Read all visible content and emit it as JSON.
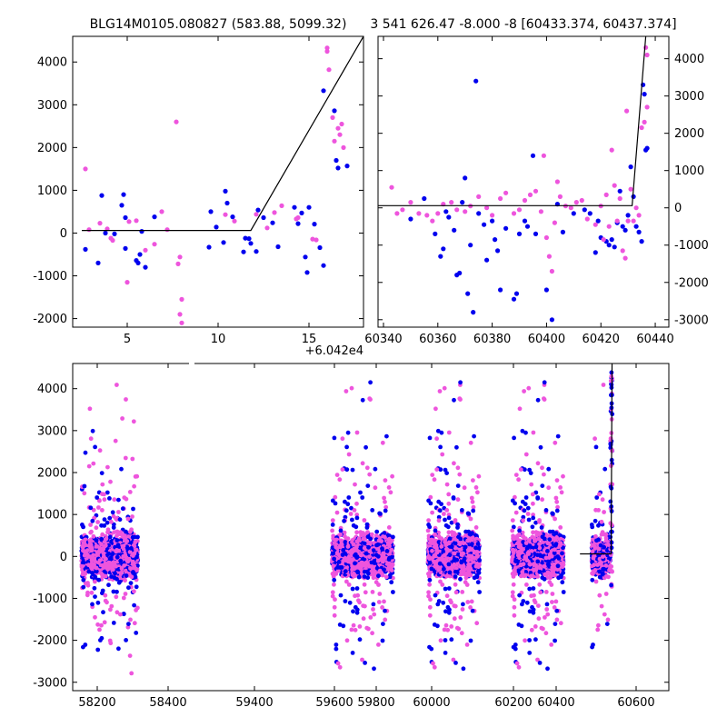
{
  "colors": {
    "blue": "#0000ee",
    "magenta": "#ee55dd",
    "model": "#000000"
  },
  "chart_data": [
    {
      "id": "top-left",
      "type": "scatter",
      "title": "BLG14M0105.080827 (583.88, 5099.32)",
      "xlim": [
        2,
        18
      ],
      "ylim": [
        -2200,
        4600
      ],
      "xticks": [
        5,
        10,
        15
      ],
      "yticks": [
        -2000,
        -1000,
        0,
        1000,
        2000,
        3000,
        4000
      ],
      "xoffset_label": "+6.042e4",
      "ytick_side": "left",
      "model_line": [
        [
          2.5,
          60
        ],
        [
          11.8,
          60
        ],
        [
          18,
          4600
        ]
      ],
      "series": [
        {
          "color": "blue",
          "points": [
            [
              2.7,
              -380
            ],
            [
              3.4,
              -700
            ],
            [
              3.6,
              880
            ],
            [
              3.8,
              0
            ],
            [
              4.3,
              -20
            ],
            [
              4.7,
              650
            ],
            [
              4.8,
              900
            ],
            [
              4.9,
              -360
            ],
            [
              4.9,
              360
            ],
            [
              5.5,
              -640
            ],
            [
              5.6,
              -700
            ],
            [
              5.7,
              -500
            ],
            [
              5.8,
              40
            ],
            [
              6.0,
              -800
            ],
            [
              6.5,
              380
            ],
            [
              9.5,
              -330
            ],
            [
              9.6,
              500
            ],
            [
              9.9,
              140
            ],
            [
              10.3,
              -220
            ],
            [
              10.4,
              980
            ],
            [
              10.5,
              700
            ],
            [
              10.8,
              380
            ],
            [
              11.4,
              -440
            ],
            [
              11.5,
              -120
            ],
            [
              11.7,
              -130
            ],
            [
              11.8,
              -240
            ],
            [
              12.1,
              -430
            ],
            [
              12.2,
              540
            ],
            [
              12.5,
              360
            ],
            [
              13.0,
              240
            ],
            [
              13.3,
              -320
            ],
            [
              14.2,
              600
            ],
            [
              14.4,
              220
            ],
            [
              14.6,
              470
            ],
            [
              14.8,
              -560
            ],
            [
              14.9,
              -920
            ],
            [
              15.0,
              600
            ],
            [
              15.3,
              210
            ],
            [
              15.6,
              -340
            ],
            [
              15.8,
              -760
            ],
            [
              15.8,
              3330
            ],
            [
              16.4,
              2860
            ],
            [
              16.5,
              1700
            ],
            [
              16.6,
              1520
            ],
            [
              17.1,
              1570
            ]
          ]
        },
        {
          "color": "magenta",
          "points": [
            [
              2.7,
              1500
            ],
            [
              2.9,
              80
            ],
            [
              3.5,
              230
            ],
            [
              3.9,
              100
            ],
            [
              4.1,
              -120
            ],
            [
              4.2,
              -170
            ],
            [
              5.0,
              -1150
            ],
            [
              5.1,
              270
            ],
            [
              5.5,
              290
            ],
            [
              6.0,
              -400
            ],
            [
              6.5,
              -260
            ],
            [
              6.9,
              500
            ],
            [
              7.2,
              80
            ],
            [
              7.7,
              2600
            ],
            [
              7.8,
              -720
            ],
            [
              7.9,
              -560
            ],
            [
              7.9,
              -1900
            ],
            [
              8.0,
              -1550
            ],
            [
              8.0,
              -2100
            ],
            [
              10.4,
              430
            ],
            [
              10.9,
              280
            ],
            [
              12.1,
              440
            ],
            [
              12.7,
              120
            ],
            [
              13.1,
              480
            ],
            [
              13.5,
              640
            ],
            [
              14.3,
              330
            ],
            [
              14.4,
              360
            ],
            [
              15.2,
              -140
            ],
            [
              15.4,
              -160
            ],
            [
              16.0,
              4330
            ],
            [
              16.0,
              4250
            ],
            [
              16.1,
              3820
            ],
            [
              16.3,
              2700
            ],
            [
              16.4,
              2150
            ],
            [
              16.6,
              2450
            ],
            [
              16.8,
              2550
            ],
            [
              16.9,
              2000
            ],
            [
              16.7,
              2300
            ]
          ]
        }
      ]
    },
    {
      "id": "top-right",
      "type": "scatter",
      "title": "3 541 626.47 -8.000 -8 [60433.374, 60437.374]",
      "xlim": [
        60338,
        60445
      ],
      "ylim": [
        -3200,
        4600
      ],
      "xticks": [
        60340,
        60360,
        60380,
        60400,
        60420,
        60440
      ],
      "yticks": [
        -3000,
        -2000,
        -1000,
        0,
        1000,
        2000,
        3000,
        4000
      ],
      "ytick_side": "right",
      "model_line": [
        [
          60338,
          60
        ],
        [
          60431.5,
          60
        ],
        [
          60436.5,
          4600
        ]
      ],
      "series": [
        {
          "color": "blue",
          "points": [
            [
              60350,
              -300
            ],
            [
              60355,
              250
            ],
            [
              60359,
              -700
            ],
            [
              60361,
              -1300
            ],
            [
              60362,
              -1100
            ],
            [
              60363,
              -100
            ],
            [
              60364,
              -250
            ],
            [
              60366,
              -600
            ],
            [
              60367,
              -1800
            ],
            [
              60368,
              -1750
            ],
            [
              60369,
              150
            ],
            [
              60370,
              800
            ],
            [
              60371,
              -2300
            ],
            [
              60372,
              -1000
            ],
            [
              60373,
              -2800
            ],
            [
              60374,
              3400
            ],
            [
              60375,
              -150
            ],
            [
              60377,
              -450
            ],
            [
              60378,
              -1400
            ],
            [
              60380,
              -350
            ],
            [
              60381,
              -850
            ],
            [
              60382,
              -1150
            ],
            [
              60383,
              -2200
            ],
            [
              60385,
              -550
            ],
            [
              60388,
              -2450
            ],
            [
              60389,
              -2300
            ],
            [
              60390,
              -700
            ],
            [
              60392,
              -350
            ],
            [
              60393,
              -500
            ],
            [
              60395,
              1400
            ],
            [
              60396,
              -700
            ],
            [
              60400,
              -2200
            ],
            [
              60402,
              -3000
            ],
            [
              60404,
              100
            ],
            [
              60406,
              -650
            ],
            [
              60410,
              -150
            ],
            [
              60414,
              -50
            ],
            [
              60416,
              -150
            ],
            [
              60418,
              -1200
            ],
            [
              60419,
              -350
            ],
            [
              60420,
              -800
            ],
            [
              60422,
              -900
            ],
            [
              60423,
              -1000
            ],
            [
              60424,
              -850
            ],
            [
              60425,
              -1050
            ],
            [
              60426,
              -400
            ],
            [
              60427,
              450
            ],
            [
              60428,
              -500
            ],
            [
              60429,
              -600
            ],
            [
              60430,
              -200
            ],
            [
              60431,
              1100
            ],
            [
              60432,
              300
            ],
            [
              60433,
              -500
            ],
            [
              60434,
              -650
            ],
            [
              60435,
              -900
            ],
            [
              60435.5,
              3300
            ],
            [
              60436,
              3050
            ],
            [
              60436.5,
              1550
            ],
            [
              60437,
              1600
            ]
          ]
        },
        {
          "color": "magenta",
          "points": [
            [
              60343,
              550
            ],
            [
              60345,
              -150
            ],
            [
              60347,
              -50
            ],
            [
              60350,
              150
            ],
            [
              60353,
              -150
            ],
            [
              60356,
              -200
            ],
            [
              60358,
              -350
            ],
            [
              60360,
              -150
            ],
            [
              60362,
              100
            ],
            [
              60365,
              150
            ],
            [
              60367,
              -50
            ],
            [
              60370,
              -100
            ],
            [
              60372,
              50
            ],
            [
              60375,
              300
            ],
            [
              60378,
              0
            ],
            [
              60380,
              -200
            ],
            [
              60383,
              250
            ],
            [
              60385,
              400
            ],
            [
              60388,
              -150
            ],
            [
              60390,
              -50
            ],
            [
              60392,
              200
            ],
            [
              60394,
              350
            ],
            [
              60396,
              450
            ],
            [
              60398,
              -100
            ],
            [
              60399,
              1400
            ],
            [
              60400,
              -800
            ],
            [
              60401,
              -1300
            ],
            [
              60402,
              -1700
            ],
            [
              60403,
              -400
            ],
            [
              60404,
              700
            ],
            [
              60405,
              300
            ],
            [
              60407,
              50
            ],
            [
              60409,
              0
            ],
            [
              60411,
              150
            ],
            [
              60413,
              200
            ],
            [
              60415,
              -300
            ],
            [
              60418,
              -450
            ],
            [
              60420,
              50
            ],
            [
              60421,
              -850
            ],
            [
              60422,
              350
            ],
            [
              60423,
              -500
            ],
            [
              60424,
              1550
            ],
            [
              60425,
              600
            ],
            [
              60426,
              -350
            ],
            [
              60427,
              250
            ],
            [
              60428,
              -1150
            ],
            [
              60429,
              -1350
            ],
            [
              60429.5,
              2600
            ],
            [
              60430,
              -350
            ],
            [
              60431,
              500
            ],
            [
              60432,
              -350
            ],
            [
              60433,
              0
            ],
            [
              60434,
              -200
            ],
            [
              60435,
              2150
            ],
            [
              60436,
              2300
            ],
            [
              60436.5,
              4300
            ],
            [
              60437,
              4100
            ],
            [
              60437,
              2700
            ]
          ]
        }
      ]
    },
    {
      "id": "bottom",
      "type": "scatter",
      "xlim": [
        58130,
        60680
      ],
      "ylim": [
        -3200,
        4600
      ],
      "xticks": [
        58200,
        58400,
        59400,
        59600,
        59800,
        60000,
        60200,
        60400,
        60600
      ],
      "yticks": [
        -3000,
        -2000,
        -1000,
        0,
        1000,
        2000,
        3000,
        4000
      ],
      "ytick_side": "left",
      "model_line": [
        [
          60300,
          60
        ],
        [
          60433,
          60
        ],
        [
          60437,
          4600
        ]
      ],
      "seasons": [
        {
          "center": 58288,
          "half_width": 120,
          "n": 1500
        },
        {
          "center": 59370,
          "half_width": 130,
          "n": 1500
        },
        {
          "center": 59760,
          "half_width": 110,
          "n": 1500
        },
        {
          "center": 60120,
          "half_width": 110,
          "n": 1500
        },
        {
          "center": 60390,
          "half_width": 40,
          "n": 400
        }
      ]
    }
  ]
}
